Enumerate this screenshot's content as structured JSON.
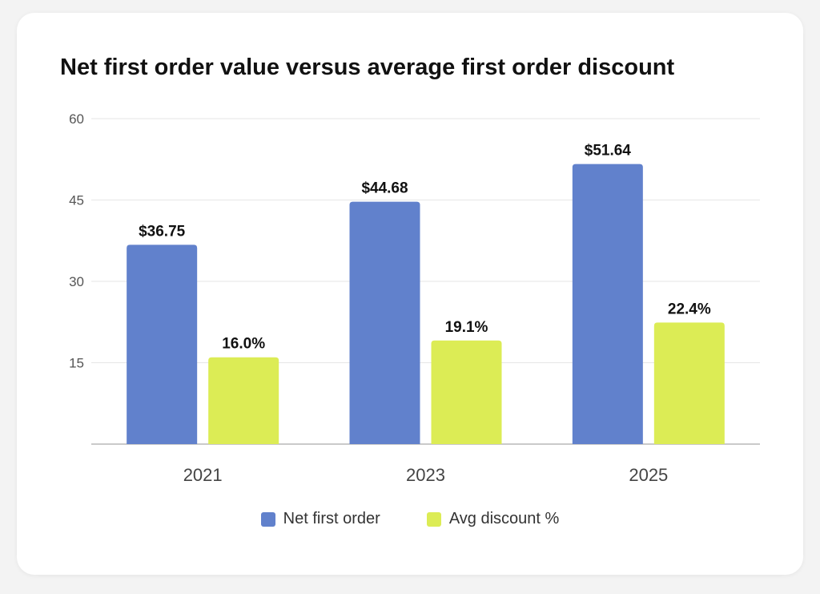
{
  "chart_data": {
    "type": "bar",
    "title": "Net first order value versus average first order discount",
    "categories": [
      "2021",
      "2023",
      "2025"
    ],
    "series": [
      {
        "name": "Net first order",
        "values": [
          36.75,
          44.68,
          51.64
        ],
        "labels": [
          "$36.75",
          "$44.68",
          "$51.64"
        ],
        "color": "#6181cc"
      },
      {
        "name": "Avg discount %",
        "values": [
          16.0,
          19.1,
          22.4
        ],
        "labels": [
          "16.0%",
          "19.1%",
          "22.4%"
        ],
        "color": "#dcec55"
      }
    ],
    "ylim": [
      0,
      60
    ],
    "yticks": [
      15,
      30,
      45,
      60
    ],
    "grid": true,
    "legend": "bottom-center"
  }
}
